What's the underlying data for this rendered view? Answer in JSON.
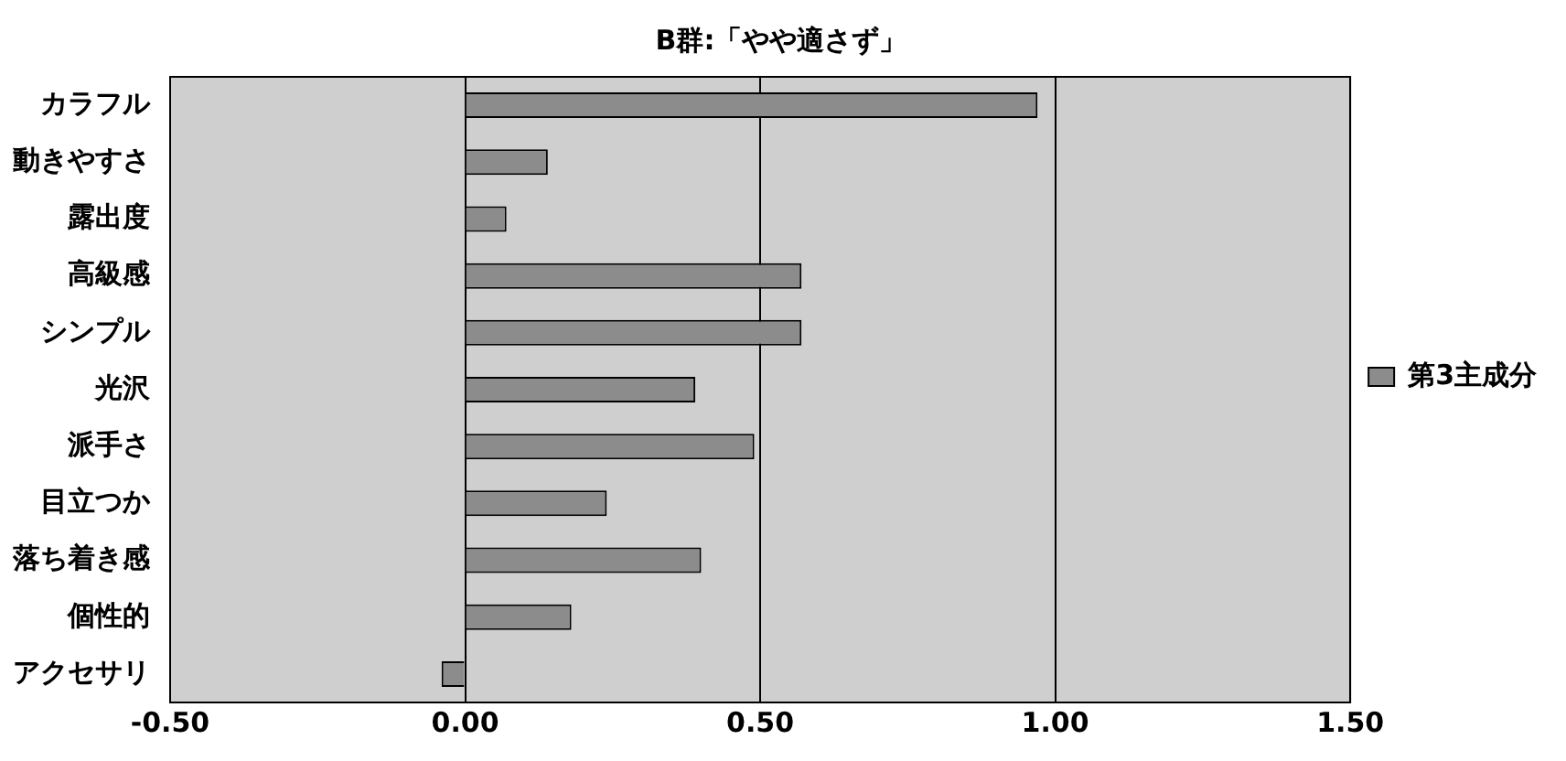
{
  "chart_data": {
    "type": "bar",
    "orientation": "horizontal",
    "title": "B群:「やや適さず」",
    "categories": [
      "カラフル",
      "動きやすさ",
      "露出度",
      "高級感",
      "シンプル",
      "光沢",
      "派手さ",
      "目立つか",
      "落ち着き感",
      "個性的",
      "アクセサリ"
    ],
    "series": [
      {
        "name": "第3主成分",
        "color": "#8c8c8c",
        "values": [
          0.97,
          0.14,
          0.07,
          0.57,
          0.57,
          0.39,
          0.49,
          0.24,
          0.4,
          0.18,
          -0.04
        ]
      }
    ],
    "xlim": [
      -0.5,
      1.5
    ],
    "xticks": [
      {
        "value": -0.5,
        "label": "-0.50"
      },
      {
        "value": 0,
        "label": "0.00"
      },
      {
        "value": 0.5,
        "label": "0.50"
      },
      {
        "value": 1,
        "label": "1.00"
      },
      {
        "value": 1.5,
        "label": "1.50"
      }
    ],
    "grid": "x",
    "legend": "right"
  }
}
